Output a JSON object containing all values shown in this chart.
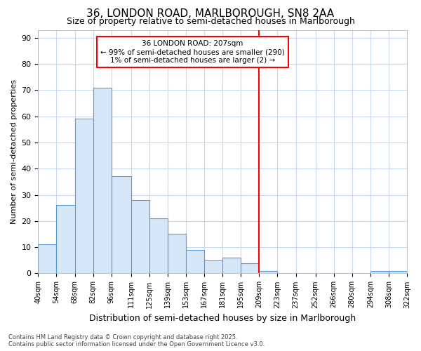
{
  "title1": "36, LONDON ROAD, MARLBOROUGH, SN8 2AA",
  "title2": "Size of property relative to semi-detached houses in Marlborough",
  "xlabel": "Distribution of semi-detached houses by size in Marlborough",
  "ylabel": "Number of semi-detached properties",
  "bin_edges": [
    40,
    54,
    68,
    82,
    96,
    111,
    125,
    139,
    153,
    167,
    181,
    195,
    209,
    223,
    237,
    252,
    266,
    280,
    294,
    308,
    322
  ],
  "bin_labels": [
    "40sqm",
    "54sqm",
    "68sqm",
    "82sqm",
    "96sqm",
    "111sqm",
    "125sqm",
    "139sqm",
    "153sqm",
    "167sqm",
    "181sqm",
    "195sqm",
    "209sqm",
    "223sqm",
    "237sqm",
    "252sqm",
    "266sqm",
    "280sqm",
    "294sqm",
    "308sqm",
    "322sqm"
  ],
  "counts": [
    11,
    26,
    59,
    71,
    37,
    28,
    21,
    15,
    9,
    5,
    6,
    4,
    1,
    0,
    0,
    0,
    0,
    0,
    1,
    1
  ],
  "bar_color": "#d6e8f7",
  "bar_edge_color": "#5b9bd5",
  "vline_x": 209,
  "vline_color": "red",
  "ylim_max": 93,
  "yticks": [
    0,
    10,
    20,
    30,
    40,
    50,
    60,
    70,
    80,
    90
  ],
  "annotation_title": "36 LONDON ROAD: 207sqm",
  "annotation_line2": "← 99% of semi-detached houses are smaller (290)",
  "annotation_line3": "1% of semi-detached houses are larger (2) →",
  "annotation_box_color": "#ffffff",
  "annotation_edge_color": "red",
  "footer1": "Contains HM Land Registry data © Crown copyright and database right 2025.",
  "footer2": "Contains public sector information licensed under the Open Government Licence v3.0.",
  "bg_color": "#ffffff",
  "plot_bg_color": "#ffffff",
  "grid_color": "#c8d8ee",
  "title1_fontsize": 11,
  "title2_fontsize": 9,
  "xlabel_fontsize": 9,
  "ylabel_fontsize": 8
}
